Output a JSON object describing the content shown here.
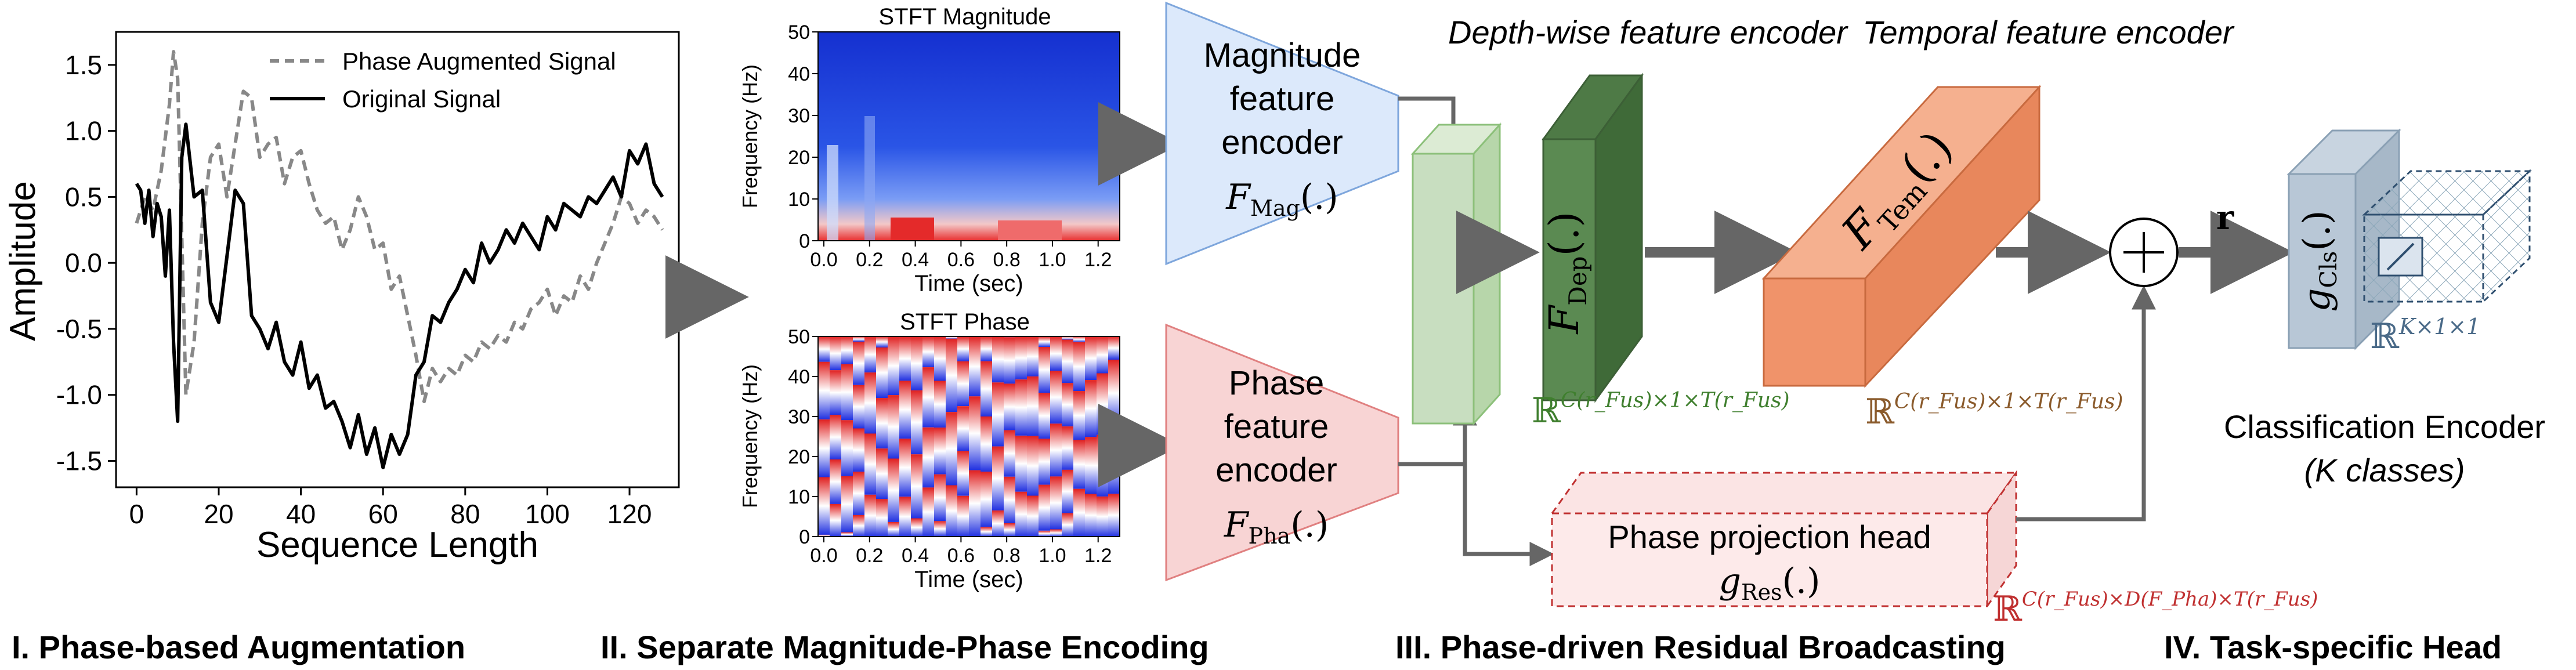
{
  "panel1": {
    "chart_data": {
      "type": "line",
      "xlabel": "Sequence Length",
      "ylabel": "Amplitude",
      "xlim": [
        -5,
        132
      ],
      "ylim": [
        -1.7,
        1.75
      ],
      "xticks": [
        "0",
        "20",
        "40",
        "60",
        "80",
        "100",
        "120"
      ],
      "yticks": [
        "1.5",
        "1.0",
        "0.5",
        "0.0",
        "-0.5",
        "-1.0",
        "-1.5"
      ],
      "legend": "top-right",
      "series": [
        {
          "name": "Phase Augmented Signal",
          "style": "dashed",
          "color": "#888888",
          "x": [
            0,
            2,
            4,
            6,
            8,
            9,
            10,
            12,
            14,
            16,
            18,
            20,
            22,
            24,
            26,
            28,
            30,
            32,
            34,
            36,
            38,
            40,
            42,
            44,
            46,
            48,
            50,
            52,
            54,
            56,
            58,
            60,
            62,
            64,
            66,
            68,
            70,
            72,
            74,
            76,
            78,
            80,
            82,
            84,
            86,
            88,
            90,
            92,
            94,
            96,
            98,
            100,
            102,
            104,
            106,
            108,
            110,
            112,
            114,
            116,
            118,
            120,
            122,
            124,
            126,
            128
          ],
          "y": [
            0.3,
            0.5,
            0.4,
            0.7,
            1.2,
            1.6,
            1.4,
            -1.0,
            -0.6,
            0.3,
            0.8,
            0.9,
            0.5,
            0.9,
            1.3,
            1.25,
            0.8,
            0.9,
            0.95,
            0.6,
            0.8,
            0.85,
            0.6,
            0.4,
            0.3,
            0.35,
            0.1,
            0.25,
            0.5,
            0.35,
            0.1,
            0.15,
            -0.2,
            -0.1,
            -0.4,
            -0.7,
            -1.05,
            -0.8,
            -0.9,
            -0.8,
            -0.85,
            -0.7,
            -0.75,
            -0.6,
            -0.65,
            -0.55,
            -0.6,
            -0.45,
            -0.5,
            -0.35,
            -0.3,
            -0.2,
            -0.4,
            -0.25,
            -0.3,
            -0.1,
            -0.2,
            0.0,
            0.15,
            0.3,
            0.5,
            0.45,
            0.3,
            0.4,
            0.35,
            0.25
          ]
        },
        {
          "name": "Original Signal",
          "style": "solid",
          "color": "#000000",
          "x": [
            0,
            1,
            2,
            3,
            4,
            5,
            6,
            7,
            8,
            9,
            10,
            11,
            12,
            14,
            16,
            18,
            20,
            22,
            24,
            26,
            28,
            30,
            32,
            34,
            36,
            38,
            40,
            42,
            44,
            46,
            48,
            50,
            52,
            54,
            56,
            58,
            60,
            62,
            64,
            66,
            68,
            70,
            72,
            74,
            76,
            78,
            80,
            82,
            84,
            86,
            88,
            90,
            92,
            94,
            96,
            98,
            100,
            102,
            104,
            106,
            108,
            110,
            112,
            114,
            116,
            118,
            120,
            122,
            124,
            126,
            128
          ],
          "y": [
            0.6,
            0.55,
            0.3,
            0.55,
            0.2,
            0.45,
            0.35,
            -0.1,
            0.4,
            -0.6,
            -1.2,
            0.8,
            1.05,
            0.5,
            0.55,
            -0.3,
            -0.45,
            0.05,
            0.55,
            0.45,
            -0.4,
            -0.5,
            -0.65,
            -0.45,
            -0.75,
            -0.85,
            -0.6,
            -0.95,
            -0.85,
            -1.1,
            -1.05,
            -1.2,
            -1.4,
            -1.15,
            -1.45,
            -1.25,
            -1.55,
            -1.3,
            -1.45,
            -1.3,
            -0.85,
            -0.75,
            -0.4,
            -0.45,
            -0.3,
            -0.2,
            -0.05,
            -0.15,
            0.15,
            0.0,
            0.1,
            0.25,
            0.15,
            0.3,
            0.2,
            0.1,
            0.35,
            0.25,
            0.45,
            0.4,
            0.35,
            0.5,
            0.45,
            0.55,
            0.65,
            0.5,
            0.85,
            0.75,
            0.9,
            0.6,
            0.5
          ]
        }
      ]
    },
    "caption": "I. Phase-based Augmentation"
  },
  "panel2": {
    "caption": "II. Separate Magnitude-Phase Encoding",
    "stft_magnitude": {
      "title": "STFT Magnitude",
      "xlabel": "Time (sec)",
      "ylabel": "Frequency (Hz)",
      "xticks": [
        "0.0",
        "0.2",
        "0.4",
        "0.6",
        "0.8",
        "1.0",
        "1.2"
      ],
      "yticks": [
        "50",
        "40",
        "30",
        "20",
        "10",
        "0"
      ]
    },
    "stft_phase": {
      "title": "STFT Phase",
      "xlabel": "Time (sec)",
      "ylabel": "Frequency (Hz)",
      "xticks": [
        "0.0",
        "0.2",
        "0.4",
        "0.6",
        "0.8",
        "1.0",
        "1.2"
      ],
      "yticks": [
        "50",
        "40",
        "30",
        "20",
        "10",
        "0"
      ]
    },
    "mag_encoder": {
      "line1": "Magnitude",
      "line2": "feature",
      "line3": "encoder",
      "fn": "F",
      "sub": "Mag",
      "args": "(.)",
      "color": "#dce9fb",
      "stroke": "#7ea6dc"
    },
    "pha_encoder": {
      "line1": "Phase",
      "line2": "feature",
      "line3": "encoder",
      "fn": "F",
      "sub": "Pha",
      "args": "(.)",
      "color": "#f8d4d4",
      "stroke": "#e08080"
    }
  },
  "panel3": {
    "caption": "III. Phase-driven Residual Broadcasting",
    "depth_title": "Depth-wise feature encoder",
    "temporal_title": "Temporal feature encoder",
    "dep_label": {
      "fn": "F",
      "sub": "Dep",
      "args": "(.)"
    },
    "tem_label": {
      "fn": "F",
      "sub": "Tem",
      "args": "(.)"
    },
    "dep_dim": {
      "R": "ℝ",
      "exp": "C(r_Fus)×1×T(r_Fus)"
    },
    "tem_dim": {
      "R": "ℝ",
      "exp": "C(r_Fus)×1×T(r_Fus)"
    },
    "res_head": {
      "line1": "Phase projection head",
      "fn": "g",
      "sub": "Res",
      "args": "(.)"
    },
    "res_dim": {
      "R": "ℝ",
      "exp": "C(r_Fus)×D(F_Pha)×T(r_Fus)"
    },
    "colors": {
      "fus": "#c8dec0",
      "dep": "#5b8a52",
      "tem": "#f0936a",
      "res": "#fdeaea",
      "dim_green": "#3f7f2e",
      "dim_brown": "#8a5a2b",
      "dim_red": "#c03030"
    }
  },
  "panel4": {
    "caption": "IV. Task-specific Head",
    "plus": "+",
    "r_label": "r",
    "cls_label": {
      "fn": "g",
      "sub": "Cls",
      "args": "(.)"
    },
    "cls_dim": {
      "R": "ℝ",
      "exp": "K×1×1"
    },
    "title_line1": "Classification Encoder",
    "title_line2": "(K classes)"
  }
}
